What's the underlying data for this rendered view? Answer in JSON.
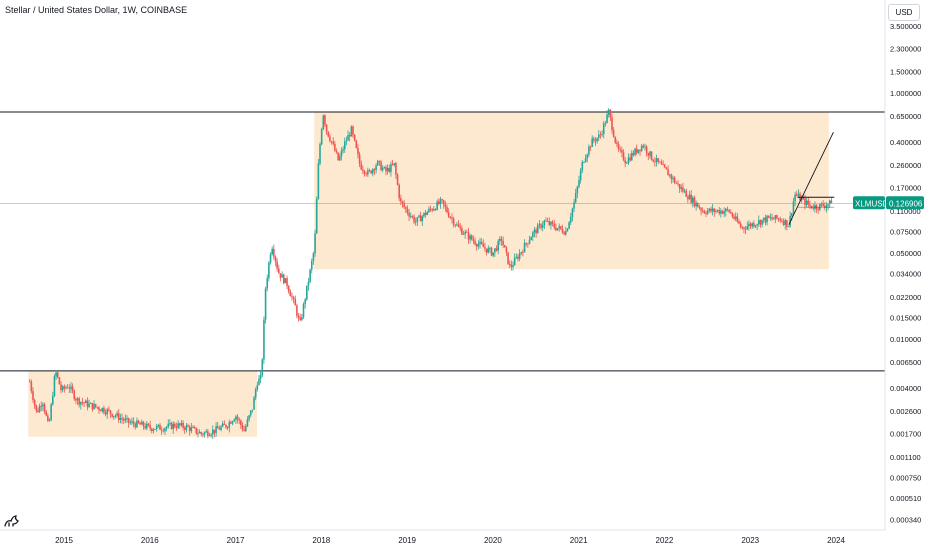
{
  "header": {
    "symbol_title": "Stellar / United States Dollar, 1W, COINBASE",
    "currency": "USD"
  },
  "colors": {
    "up": "#26a69a",
    "down": "#ef5350",
    "zone": "#fde5c8",
    "line": "#131722",
    "price_badge": "#089981"
  },
  "icons": {
    "logo": "tradingview-logo-icon"
  },
  "chart_data": {
    "type": "candlestick",
    "symbol": "XLMUSD",
    "interval": "1W",
    "exchange": "COINBASE",
    "y_scale": "log",
    "grid": false,
    "x_ticks": [
      "2015",
      "2016",
      "2017",
      "2018",
      "2019",
      "2020",
      "2021",
      "2022",
      "2023",
      "2024"
    ],
    "y_ticks": [
      "3.500000",
      "2.300000",
      "1.500000",
      "1.000000",
      "0.650000",
      "0.400000",
      "0.260000",
      "0.170000",
      "0.110000",
      "0.075000",
      "0.050000",
      "0.034000",
      "0.022000",
      "0.015000",
      "0.010000",
      "0.006500",
      "0.004000",
      "0.002600",
      "0.001700",
      "0.001100",
      "0.000750",
      "0.000510",
      "0.000340"
    ],
    "y_tick_values": [
      3.5,
      2.3,
      1.5,
      1.0,
      0.65,
      0.4,
      0.26,
      0.17,
      0.11,
      0.075,
      0.05,
      0.034,
      0.022,
      0.015,
      0.01,
      0.0065,
      0.004,
      0.0026,
      0.0017,
      0.0011,
      0.00075,
      0.00051,
      0.00034
    ],
    "last_price": {
      "label": "XLMUSD",
      "value": "0.126906",
      "numeric": 0.126906
    },
    "horizontal_lines": [
      0.7,
      0.0055
    ],
    "zones": [
      {
        "from": "2014-08",
        "to": "2017-04",
        "low": 0.0016,
        "high": 0.0055
      },
      {
        "from": "2017-12",
        "to": "2023-12",
        "low": 0.037,
        "high": 0.7
      }
    ],
    "trend_line": {
      "from": {
        "t": 2023.45,
        "v": 0.085
      },
      "to": {
        "t": 2023.97,
        "v": 0.48
      }
    },
    "small_range": {
      "from": 2023.55,
      "to": 2023.98,
      "high": 0.142,
      "low": 0.118
    },
    "price_path": [
      [
        2014.6,
        0.0045
      ],
      [
        2014.68,
        0.0025
      ],
      [
        2014.75,
        0.0032
      ],
      [
        2014.82,
        0.0019
      ],
      [
        2014.9,
        0.0055
      ],
      [
        2014.97,
        0.0038
      ],
      [
        2015.05,
        0.0042
      ],
      [
        2015.15,
        0.0032
      ],
      [
        2015.3,
        0.0029
      ],
      [
        2015.45,
        0.0027
      ],
      [
        2015.6,
        0.0024
      ],
      [
        2015.75,
        0.0021
      ],
      [
        2015.9,
        0.002
      ],
      [
        2016.0,
        0.0019
      ],
      [
        2016.15,
        0.0019
      ],
      [
        2016.3,
        0.002
      ],
      [
        2016.45,
        0.0019
      ],
      [
        2016.6,
        0.0017
      ],
      [
        2016.75,
        0.0018
      ],
      [
        2016.9,
        0.002
      ],
      [
        2017.0,
        0.0024
      ],
      [
        2017.1,
        0.0018
      ],
      [
        2017.2,
        0.0028
      ],
      [
        2017.25,
        0.0045
      ],
      [
        2017.3,
        0.0048
      ],
      [
        2017.35,
        0.026
      ],
      [
        2017.42,
        0.06
      ],
      [
        2017.5,
        0.035
      ],
      [
        2017.6,
        0.028
      ],
      [
        2017.7,
        0.018
      ],
      [
        2017.75,
        0.013
      ],
      [
        2017.85,
        0.03
      ],
      [
        2017.92,
        0.055
      ],
      [
        2017.97,
        0.3
      ],
      [
        2018.02,
        0.7
      ],
      [
        2018.06,
        0.5
      ],
      [
        2018.12,
        0.4
      ],
      [
        2018.2,
        0.28
      ],
      [
        2018.28,
        0.4
      ],
      [
        2018.35,
        0.5
      ],
      [
        2018.45,
        0.26
      ],
      [
        2018.55,
        0.22
      ],
      [
        2018.65,
        0.27
      ],
      [
        2018.75,
        0.23
      ],
      [
        2018.85,
        0.26
      ],
      [
        2018.92,
        0.13
      ],
      [
        2019.0,
        0.11
      ],
      [
        2019.1,
        0.09
      ],
      [
        2019.25,
        0.11
      ],
      [
        2019.4,
        0.13
      ],
      [
        2019.5,
        0.1
      ],
      [
        2019.6,
        0.08
      ],
      [
        2019.75,
        0.065
      ],
      [
        2019.9,
        0.055
      ],
      [
        2020.0,
        0.05
      ],
      [
        2020.1,
        0.065
      ],
      [
        2020.2,
        0.038
      ],
      [
        2020.3,
        0.048
      ],
      [
        2020.45,
        0.07
      ],
      [
        2020.6,
        0.09
      ],
      [
        2020.75,
        0.08
      ],
      [
        2020.85,
        0.075
      ],
      [
        2020.95,
        0.13
      ],
      [
        2021.05,
        0.28
      ],
      [
        2021.15,
        0.4
      ],
      [
        2021.25,
        0.45
      ],
      [
        2021.35,
        0.7
      ],
      [
        2021.45,
        0.35
      ],
      [
        2021.55,
        0.28
      ],
      [
        2021.65,
        0.33
      ],
      [
        2021.75,
        0.38
      ],
      [
        2021.85,
        0.3
      ],
      [
        2021.95,
        0.26
      ],
      [
        2022.05,
        0.22
      ],
      [
        2022.15,
        0.18
      ],
      [
        2022.3,
        0.14
      ],
      [
        2022.45,
        0.11
      ],
      [
        2022.6,
        0.11
      ],
      [
        2022.75,
        0.11
      ],
      [
        2022.9,
        0.08
      ],
      [
        2023.0,
        0.085
      ],
      [
        2023.1,
        0.09
      ],
      [
        2023.2,
        0.095
      ],
      [
        2023.35,
        0.095
      ],
      [
        2023.45,
        0.085
      ],
      [
        2023.52,
        0.15
      ],
      [
        2023.58,
        0.14
      ],
      [
        2023.7,
        0.12
      ],
      [
        2023.8,
        0.12
      ],
      [
        2023.9,
        0.125
      ],
      [
        2023.96,
        0.127
      ]
    ]
  }
}
